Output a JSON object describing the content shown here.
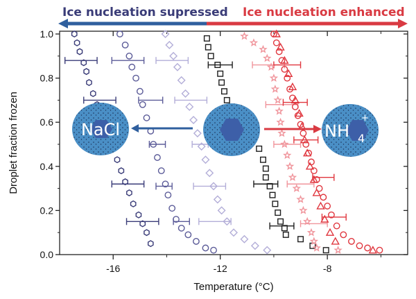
{
  "chart_data": {
    "type": "scatter",
    "xlabel": "Temperature (°C)",
    "ylabel": "Droplet fraction frozen",
    "xlim": [
      -18,
      -5
    ],
    "ylim": [
      0,
      1.0
    ],
    "xticks": [
      -16,
      -12,
      -8
    ],
    "xtick_labels": [
      "-16",
      "-12",
      "-8"
    ],
    "x_minor_ticks": [
      -14,
      -10,
      -6
    ],
    "yticks": [
      0.0,
      0.2,
      0.4,
      0.6,
      0.8,
      1.0
    ],
    "ytick_labels": [
      "0.0",
      "0.2",
      "0.4",
      "0.6",
      "0.8",
      "1.0"
    ],
    "annotations": {
      "left_banner": "Ice nucleation supressed",
      "right_banner": "Ice nucleation enhanced",
      "left_ball": "NaCl",
      "right_ball": "NH4",
      "right_ball_sub": "4",
      "right_ball_main": "NH",
      "right_ball_sup": "+"
    },
    "colors": {
      "supressed": "#2f5f9e",
      "enhanced": "#d93a42",
      "ball": "#4a8fc6",
      "hexagon": "#3d5fa8"
    },
    "series": [
      {
        "name": "navy hexagons",
        "marker": "hexagon",
        "color": "#3a3c78",
        "points": [
          [
            -17.45,
            1.0
          ],
          [
            -17.35,
            0.96
          ],
          [
            -17.25,
            0.92
          ],
          [
            -17.1,
            0.87
          ],
          [
            -17.0,
            0.83
          ],
          [
            -16.9,
            0.78
          ],
          [
            -16.75,
            0.73
          ],
          [
            -16.6,
            0.68
          ],
          [
            -16.4,
            0.63
          ],
          [
            -16.25,
            0.58
          ],
          [
            -16.1,
            0.53
          ],
          [
            -16.0,
            0.48
          ],
          [
            -15.85,
            0.43
          ],
          [
            -15.7,
            0.38
          ],
          [
            -15.55,
            0.33
          ],
          [
            -15.4,
            0.28
          ],
          [
            -15.25,
            0.23
          ],
          [
            -15.05,
            0.18
          ],
          [
            -14.9,
            0.14
          ],
          [
            -14.75,
            0.1
          ],
          [
            -14.6,
            0.05
          ]
        ],
        "errors": [
          [
            -17.2,
            0.88,
            0.6
          ],
          [
            -16.5,
            0.7,
            0.6
          ],
          [
            -15.45,
            0.32,
            0.6
          ],
          [
            -14.9,
            0.15,
            0.6
          ]
        ]
      },
      {
        "name": "purple circles",
        "marker": "circle",
        "color": "#5b5b98",
        "points": [
          [
            -15.75,
            1.0
          ],
          [
            -15.55,
            0.95
          ],
          [
            -15.4,
            0.9
          ],
          [
            -15.3,
            0.85
          ],
          [
            -15.15,
            0.8
          ],
          [
            -15.0,
            0.74
          ],
          [
            -14.9,
            0.68
          ],
          [
            -14.75,
            0.62
          ],
          [
            -14.6,
            0.56
          ],
          [
            -14.5,
            0.5
          ],
          [
            -14.35,
            0.44
          ],
          [
            -14.2,
            0.38
          ],
          [
            -14.05,
            0.32
          ],
          [
            -13.95,
            0.27
          ],
          [
            -13.8,
            0.21
          ],
          [
            -13.65,
            0.16
          ],
          [
            -13.45,
            0.12
          ],
          [
            -13.2,
            0.09
          ],
          [
            -12.9,
            0.06
          ],
          [
            -12.55,
            0.03
          ],
          [
            -12.25,
            0.02
          ]
        ],
        "errors": [
          [
            -15.45,
            0.88,
            0.6
          ],
          [
            -14.6,
            0.7,
            0.45
          ],
          [
            -14.35,
            0.5,
            0.3
          ],
          [
            -14.1,
            0.31,
            0.3
          ],
          [
            -13.45,
            0.15,
            0.3
          ]
        ]
      },
      {
        "name": "lavender diamonds",
        "marker": "diamond",
        "color": "#b3aed8",
        "points": [
          [
            -14.05,
            1.0
          ],
          [
            -13.9,
            0.95
          ],
          [
            -13.75,
            0.9
          ],
          [
            -13.6,
            0.85
          ],
          [
            -13.45,
            0.79
          ],
          [
            -13.3,
            0.73
          ],
          [
            -13.15,
            0.67
          ],
          [
            -13.0,
            0.61
          ],
          [
            -12.85,
            0.55
          ],
          [
            -12.7,
            0.49
          ],
          [
            -12.55,
            0.43
          ],
          [
            -12.4,
            0.37
          ],
          [
            -12.25,
            0.31
          ],
          [
            -12.1,
            0.25
          ],
          [
            -11.95,
            0.2
          ],
          [
            -11.75,
            0.15
          ],
          [
            -11.5,
            0.1
          ],
          [
            -11.1,
            0.07
          ],
          [
            -10.7,
            0.04
          ],
          [
            -10.25,
            0.02
          ]
        ],
        "errors": [
          [
            -13.8,
            0.88,
            0.6
          ],
          [
            -13.1,
            0.7,
            0.6
          ],
          [
            -12.75,
            0.5,
            0.3
          ],
          [
            -12.4,
            0.31,
            0.6
          ],
          [
            -12.2,
            0.15,
            0.6
          ]
        ]
      },
      {
        "name": "black squares",
        "marker": "square",
        "color": "#1e1e1e",
        "points": [
          [
            -12.5,
            0.98
          ],
          [
            -12.45,
            0.94
          ],
          [
            -12.35,
            0.9
          ],
          [
            -12.1,
            0.86
          ],
          [
            -12.0,
            0.82
          ],
          [
            -11.95,
            0.78
          ],
          [
            -11.85,
            0.74
          ],
          [
            -11.75,
            0.7
          ],
          [
            -11.6,
            0.66
          ],
          [
            -11.1,
            0.62
          ],
          [
            -11.05,
            0.6
          ],
          [
            -10.55,
            0.48
          ],
          [
            -10.4,
            0.43
          ],
          [
            -10.3,
            0.39
          ],
          [
            -10.3,
            0.35
          ],
          [
            -10.15,
            0.31
          ],
          [
            -10.05,
            0.27
          ],
          [
            -9.95,
            0.23
          ],
          [
            -9.85,
            0.19
          ],
          [
            -9.75,
            0.15
          ],
          [
            -9.6,
            0.12
          ],
          [
            -9.55,
            0.09
          ],
          [
            -9.0,
            0.07
          ],
          [
            -8.55,
            0.04
          ],
          [
            -8.05,
            0.02
          ]
        ],
        "errors": [
          [
            -12.0,
            0.86,
            0.45
          ],
          [
            -11.2,
            0.62,
            0.45
          ],
          [
            -10.3,
            0.32,
            0.45
          ],
          [
            -9.7,
            0.13,
            0.45
          ]
        ]
      },
      {
        "name": "pink stars",
        "marker": "star",
        "color": "#f0959c",
        "points": [
          [
            -11.1,
            0.99
          ],
          [
            -10.75,
            0.96
          ],
          [
            -10.4,
            0.93
          ],
          [
            -10.25,
            0.89
          ],
          [
            -10.1,
            0.85
          ],
          [
            -10.0,
            0.8
          ],
          [
            -9.95,
            0.75
          ],
          [
            -9.85,
            0.7
          ],
          [
            -9.8,
            0.65
          ],
          [
            -9.75,
            0.6
          ],
          [
            -9.7,
            0.55
          ],
          [
            -9.6,
            0.5
          ],
          [
            -9.5,
            0.45
          ],
          [
            -9.4,
            0.4
          ],
          [
            -9.3,
            0.35
          ],
          [
            -9.15,
            0.3
          ],
          [
            -9.0,
            0.25
          ],
          [
            -8.9,
            0.2
          ],
          [
            -8.75,
            0.15
          ],
          [
            -8.6,
            0.1
          ],
          [
            -8.5,
            0.06
          ],
          [
            -8.4,
            0.03
          ],
          [
            -7.6,
            0.02
          ]
        ],
        "errors": [
          [
            -10.2,
            0.86,
            0.6
          ],
          [
            -9.7,
            0.68,
            0.6
          ],
          [
            -9.5,
            0.5,
            0.5
          ],
          [
            -9.0,
            0.32,
            0.5
          ],
          [
            -8.5,
            0.14,
            0.5
          ]
        ]
      },
      {
        "name": "red circles",
        "marker": "circle",
        "color": "#e0363e",
        "points": [
          [
            -10.0,
            1.0
          ],
          [
            -9.9,
            0.96
          ],
          [
            -9.8,
            0.92
          ],
          [
            -9.7,
            0.88
          ],
          [
            -9.6,
            0.84
          ],
          [
            -9.5,
            0.8
          ],
          [
            -9.4,
            0.75
          ],
          [
            -9.3,
            0.71
          ],
          [
            -9.2,
            0.67
          ],
          [
            -9.1,
            0.63
          ],
          [
            -9.0,
            0.59
          ],
          [
            -8.9,
            0.55
          ],
          [
            -8.8,
            0.5
          ],
          [
            -8.7,
            0.46
          ],
          [
            -8.6,
            0.42
          ],
          [
            -8.5,
            0.38
          ],
          [
            -8.4,
            0.34
          ],
          [
            -8.3,
            0.3
          ],
          [
            -8.15,
            0.26
          ],
          [
            -8.0,
            0.22
          ],
          [
            -7.85,
            0.18
          ],
          [
            -7.65,
            0.13
          ],
          [
            -7.4,
            0.09
          ],
          [
            -7.1,
            0.06
          ],
          [
            -6.8,
            0.04
          ],
          [
            -6.5,
            0.03
          ],
          [
            -6.05,
            0.02
          ]
        ],
        "errors": [
          [
            -9.5,
            0.86,
            0.5
          ],
          [
            -9.2,
            0.69,
            0.45
          ],
          [
            -8.8,
            0.52,
            0.45
          ],
          [
            -8.15,
            0.35,
            0.4
          ],
          [
            -7.75,
            0.17,
            0.45
          ]
        ]
      },
      {
        "name": "red triangles",
        "marker": "triangle",
        "color": "#e0363e",
        "points": [
          [
            -9.9,
            1.0
          ],
          [
            -9.75,
            0.94
          ],
          [
            -9.6,
            0.88
          ],
          [
            -9.45,
            0.82
          ],
          [
            -9.3,
            0.76
          ],
          [
            -9.2,
            0.7
          ],
          [
            -9.05,
            0.64
          ],
          [
            -8.95,
            0.58
          ],
          [
            -8.85,
            0.52
          ],
          [
            -8.75,
            0.46
          ],
          [
            -8.65,
            0.4
          ],
          [
            -8.5,
            0.34
          ],
          [
            -8.4,
            0.28
          ],
          [
            -8.25,
            0.22
          ],
          [
            -8.1,
            0.16
          ],
          [
            -7.9,
            0.1
          ],
          [
            -7.7,
            0.06
          ],
          [
            -6.3,
            0.02
          ]
        ],
        "errors": []
      }
    ]
  }
}
